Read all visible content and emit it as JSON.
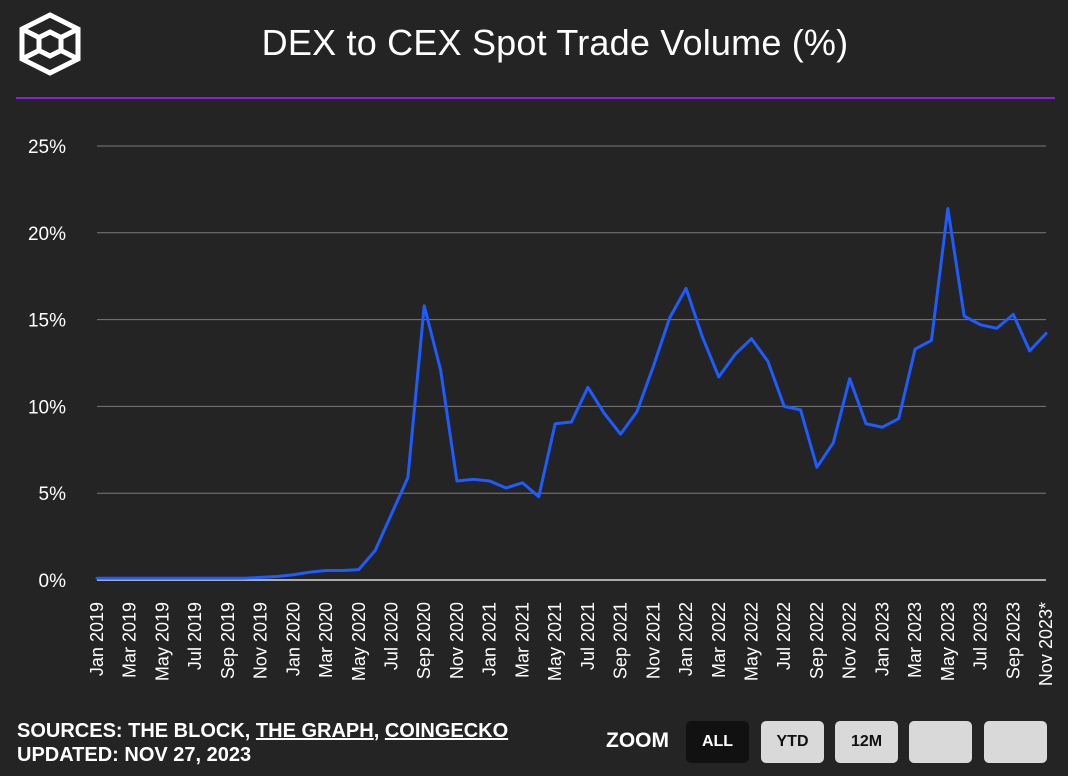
{
  "header": {
    "title": "DEX to CEX Spot Trade Volume (%)"
  },
  "colors": {
    "background": "#242424",
    "divider": "#8a1ee0",
    "line": "#1f5cff",
    "grid": "#7a7a7a",
    "text": "#ffffff"
  },
  "footer": {
    "sources_prefix": "SOURCES: THE BLOCK, ",
    "source_graph": "THE GRAPH",
    "separator": ", ",
    "source_coingecko": "COINGECKO",
    "updated": "UPDATED: NOV 27, 2023"
  },
  "zoom": {
    "label": "ZOOM",
    "buttons": [
      "ALL",
      "YTD",
      "12M",
      "",
      ""
    ],
    "active": "ALL"
  },
  "chart_data": {
    "type": "line",
    "title": "DEX to CEX Spot Trade Volume (%)",
    "xlabel": "",
    "ylabel": "",
    "ylim": [
      0,
      25
    ],
    "yticks": [
      0,
      5,
      10,
      15,
      20,
      25
    ],
    "ytick_labels": [
      "0%",
      "5%",
      "10%",
      "15%",
      "20%",
      "25%"
    ],
    "grid": true,
    "x_tick_labels": [
      "Jan 2019",
      "Mar 2019",
      "May 2019",
      "Jul 2019",
      "Sep 2019",
      "Nov 2019",
      "Jan 2020",
      "Mar 2020",
      "May 2020",
      "Jul 2020",
      "Sep 2020",
      "Nov 2020",
      "Jan 2021",
      "Mar 2021",
      "May 2021",
      "Jul 2021",
      "Sep 2021",
      "Nov 2021",
      "Jan 2022",
      "Mar 2022",
      "May 2022",
      "Jul 2022",
      "Sep 2022",
      "Nov 2022",
      "Jan 2023",
      "Mar 2023",
      "May 2023",
      "Jul 2023",
      "Sep 2023",
      "Nov 2023*"
    ],
    "series": [
      {
        "name": "DEX to CEX Spot Trade Volume (%)",
        "x": [
          "Jan 2019",
          "Feb 2019",
          "Mar 2019",
          "Apr 2019",
          "May 2019",
          "Jun 2019",
          "Jul 2019",
          "Aug 2019",
          "Sep 2019",
          "Oct 2019",
          "Nov 2019",
          "Dec 2019",
          "Jan 2020",
          "Feb 2020",
          "Mar 2020",
          "Apr 2020",
          "May 2020",
          "Jun 2020",
          "Jul 2020",
          "Aug 2020",
          "Sep 2020",
          "Oct 2020",
          "Nov 2020",
          "Dec 2020",
          "Jan 2021",
          "Feb 2021",
          "Mar 2021",
          "Apr 2021",
          "May 2021",
          "Jun 2021",
          "Jul 2021",
          "Aug 2021",
          "Sep 2021",
          "Oct 2021",
          "Nov 2021",
          "Dec 2021",
          "Jan 2022",
          "Feb 2022",
          "Mar 2022",
          "Apr 2022",
          "May 2022",
          "Jun 2022",
          "Jul 2022",
          "Aug 2022",
          "Sep 2022",
          "Oct 2022",
          "Nov 2022",
          "Dec 2022",
          "Jan 2023",
          "Feb 2023",
          "Mar 2023",
          "Apr 2023",
          "May 2023",
          "Jun 2023",
          "Jul 2023",
          "Aug 2023",
          "Sep 2023",
          "Oct 2023",
          "Nov 2023*"
        ],
        "values": [
          0.1,
          0.1,
          0.1,
          0.1,
          0.1,
          0.1,
          0.1,
          0.1,
          0.1,
          0.1,
          0.15,
          0.2,
          0.3,
          0.45,
          0.55,
          0.55,
          0.6,
          1.7,
          3.8,
          5.9,
          15.8,
          12.1,
          5.7,
          5.8,
          5.7,
          5.3,
          5.6,
          4.8,
          9.0,
          9.1,
          11.1,
          9.6,
          8.4,
          9.7,
          12.3,
          15.1,
          16.8,
          14.0,
          11.7,
          13.0,
          13.9,
          12.6,
          10.0,
          9.8,
          6.5,
          7.9,
          11.6,
          9.0,
          8.8,
          9.3,
          13.3,
          13.8,
          21.4,
          15.2,
          14.7,
          14.5,
          15.3,
          13.2,
          14.2
        ]
      }
    ]
  }
}
